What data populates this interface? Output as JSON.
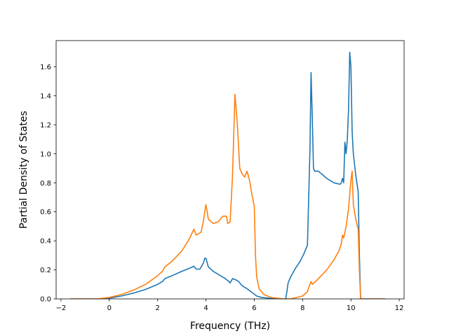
{
  "chart_data": {
    "type": "line",
    "title": "",
    "xlabel": "Frequency (THz)",
    "ylabel": "Partial Density of States",
    "xlim": [
      -2.2,
      12.2
    ],
    "ylim": [
      0,
      1.78
    ],
    "grid": false,
    "xticks": [
      -2,
      0,
      2,
      4,
      6,
      8,
      10,
      12
    ],
    "xtick_labels": [
      "−2",
      "0",
      "2",
      "4",
      "6",
      "8",
      "10",
      "12"
    ],
    "yticks": [
      0.0,
      0.2,
      0.4,
      0.6,
      0.8,
      1.0,
      1.2,
      1.4,
      1.6
    ],
    "ytick_labels": [
      "0.0",
      "0.2",
      "0.4",
      "0.6",
      "0.8",
      "1.0",
      "1.2",
      "1.4",
      "1.6"
    ],
    "series": [
      {
        "color": "#1f77b4",
        "x": [
          -1.6,
          -0.5,
          0,
          0.5,
          1.0,
          1.5,
          2.0,
          2.2,
          2.3,
          2.6,
          3.0,
          3.3,
          3.5,
          3.6,
          3.75,
          3.9,
          3.95,
          4.0,
          4.1,
          4.3,
          4.6,
          4.8,
          4.95,
          5.0,
          5.1,
          5.25,
          5.35,
          5.5,
          5.7,
          5.9,
          6.1,
          6.3,
          6.6,
          7.0,
          7.3,
          7.35,
          7.4,
          7.5,
          7.7,
          7.9,
          8.05,
          8.2,
          8.3,
          8.35,
          8.4,
          8.45,
          8.5,
          8.65,
          8.8,
          9.0,
          9.3,
          9.55,
          9.6,
          9.65,
          9.7,
          9.75,
          9.8,
          9.85,
          9.9,
          9.95,
          10.0,
          10.05,
          10.1,
          10.2,
          10.3,
          10.35,
          10.4,
          11.4
        ],
        "y": [
          0,
          0,
          0.005,
          0.02,
          0.04,
          0.065,
          0.1,
          0.12,
          0.14,
          0.16,
          0.19,
          0.21,
          0.225,
          0.205,
          0.205,
          0.25,
          0.28,
          0.28,
          0.22,
          0.19,
          0.16,
          0.14,
          0.12,
          0.11,
          0.14,
          0.13,
          0.12,
          0.09,
          0.07,
          0.045,
          0.02,
          0.01,
          0.005,
          0,
          0,
          0.05,
          0.11,
          0.15,
          0.21,
          0.26,
          0.31,
          0.37,
          1.0,
          1.56,
          1.25,
          0.9,
          0.88,
          0.88,
          0.86,
          0.83,
          0.8,
          0.79,
          0.8,
          0.83,
          0.8,
          1.08,
          1.0,
          1.1,
          1.3,
          1.7,
          1.6,
          1.15,
          1.0,
          0.85,
          0.74,
          0.3,
          0,
          0
        ]
      },
      {
        "color": "#ff7f0e",
        "x": [
          -1.6,
          -0.5,
          0,
          0.5,
          1.0,
          1.5,
          2.0,
          2.2,
          2.3,
          2.6,
          3.0,
          3.3,
          3.5,
          3.6,
          3.8,
          3.9,
          3.95,
          4.0,
          4.1,
          4.3,
          4.5,
          4.6,
          4.7,
          4.85,
          4.9,
          5.0,
          5.1,
          5.2,
          5.3,
          5.4,
          5.5,
          5.6,
          5.7,
          5.8,
          5.9,
          6.0,
          6.05,
          6.1,
          6.2,
          6.4,
          6.7,
          7.2,
          7.5,
          8.0,
          8.2,
          8.3,
          8.35,
          8.4,
          8.6,
          9.0,
          9.3,
          9.5,
          9.6,
          9.65,
          9.7,
          9.8,
          9.9,
          10.0,
          10.05,
          10.1,
          10.2,
          10.3,
          10.35,
          10.4,
          11.4
        ],
        "y": [
          0,
          0,
          0.01,
          0.03,
          0.06,
          0.1,
          0.16,
          0.19,
          0.22,
          0.26,
          0.33,
          0.41,
          0.48,
          0.44,
          0.46,
          0.54,
          0.6,
          0.65,
          0.55,
          0.52,
          0.53,
          0.55,
          0.57,
          0.57,
          0.52,
          0.53,
          0.85,
          1.41,
          1.2,
          0.9,
          0.86,
          0.84,
          0.88,
          0.82,
          0.72,
          0.64,
          0.3,
          0.15,
          0.07,
          0.03,
          0.01,
          0,
          0,
          0.02,
          0.05,
          0.1,
          0.12,
          0.1,
          0.13,
          0.2,
          0.27,
          0.33,
          0.38,
          0.44,
          0.42,
          0.5,
          0.62,
          0.82,
          0.88,
          0.65,
          0.55,
          0.48,
          0.2,
          0,
          0
        ]
      }
    ]
  }
}
